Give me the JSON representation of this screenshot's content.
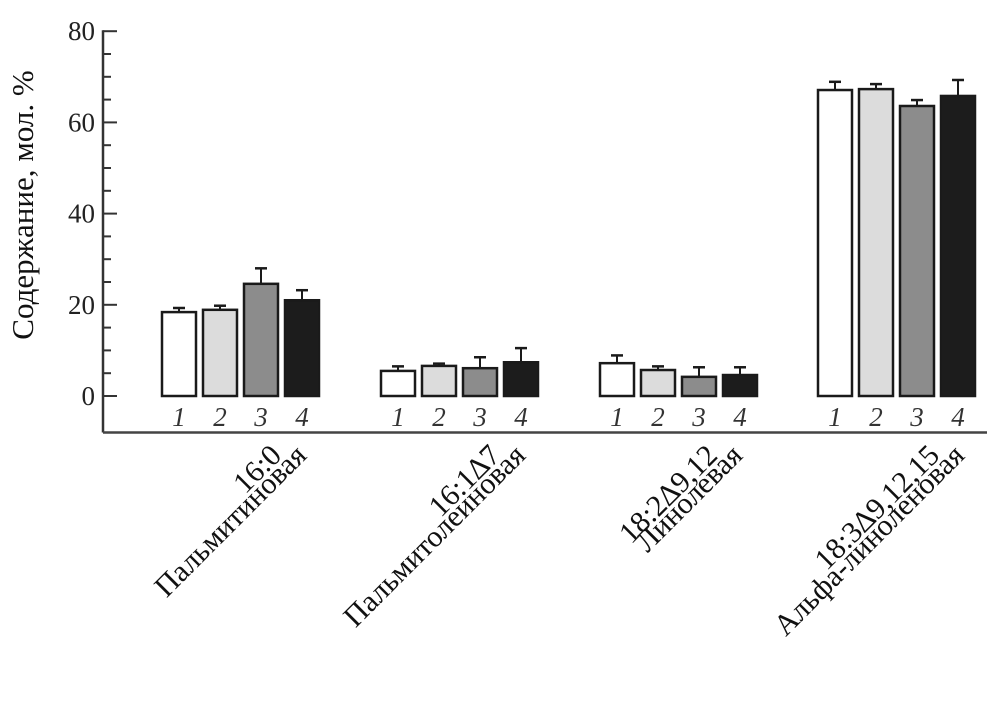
{
  "chart_data": {
    "type": "bar",
    "title": "",
    "xlabel": "",
    "ylabel": "Содержание, мол. %",
    "ylim": [
      -8,
      80
    ],
    "yticks": [
      0,
      20,
      40,
      60,
      80
    ],
    "yminor_step": 5,
    "grid": false,
    "legend": "none",
    "bar_labels": [
      "1",
      "2",
      "3",
      "4"
    ],
    "categories": [
      {
        "line1": "16:0",
        "line2": "Пальмитиновая"
      },
      {
        "line1": "16:1∆7",
        "line2": "Пальмитолеиновая"
      },
      {
        "line1": "18:2∆9,12",
        "line2": "Линолевая"
      },
      {
        "line1": "18:3∆9,12,15",
        "line2": "Альфа-линоленовая"
      }
    ],
    "series": [
      {
        "name": "1",
        "color": "#ffffff",
        "values": [
          18.4,
          5.5,
          7.2,
          67.1
        ],
        "errors": [
          0.9,
          1.0,
          1.7,
          1.8
        ]
      },
      {
        "name": "2",
        "color": "#dcdcdc",
        "values": [
          18.9,
          6.6,
          5.7,
          67.3
        ],
        "errors": [
          0.9,
          0.5,
          0.8,
          1.1
        ]
      },
      {
        "name": "3",
        "color": "#8c8c8c",
        "values": [
          24.6,
          6.1,
          4.2,
          63.6
        ],
        "errors": [
          3.4,
          2.4,
          2.1,
          1.3
        ]
      },
      {
        "name": "4",
        "color": "#1c1c1c",
        "values": [
          21.0,
          7.4,
          4.6,
          65.8
        ],
        "errors": [
          2.2,
          3.1,
          1.7,
          3.5
        ]
      }
    ]
  }
}
